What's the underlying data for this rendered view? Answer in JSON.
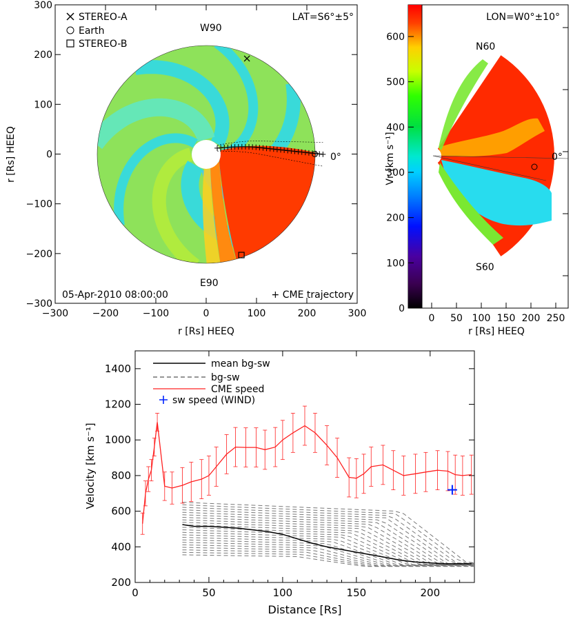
{
  "panel_a": {
    "legend": [
      {
        "symbol": "x-mark",
        "label": "STEREO-A"
      },
      {
        "symbol": "circle",
        "label": "Earth"
      },
      {
        "symbol": "square",
        "label": "STEREO-B"
      }
    ],
    "lat_label": "LAT=S6°±5°",
    "w90_label": "W90",
    "e90_label": "E90",
    "zero_label": "0°",
    "date_label": "05-Apr-2010 08:00:00",
    "trajectory_label": "+ CME trajectory",
    "xlabel": "r [Rs] HEEQ",
    "ylabel": "r [Rs] HEEQ",
    "xticks": [
      "−300",
      "−200",
      "−100",
      "0",
      "100",
      "200",
      "300"
    ],
    "yticks": [
      "300",
      "200",
      "100",
      "0",
      "−100",
      "−200",
      "−300"
    ],
    "xlim": [
      -300,
      300
    ],
    "ylim": [
      -300,
      300
    ],
    "domain_radius_rs": 215,
    "inner_radius_rs": 21.5,
    "stereo_a": {
      "x": 81,
      "y": 192
    },
    "earth": {
      "x": 216,
      "y": 0
    },
    "stereo_b": {
      "x": 70,
      "y": -203
    }
  },
  "panel_b": {
    "lon_label": "LON=W0°±10°",
    "n60_label": "N60",
    "s60_label": "S60",
    "zero_label": "0°",
    "xlabel": "r [Rs] HEEQ",
    "xticks": [
      "0",
      "50",
      "100",
      "150",
      "200",
      "250"
    ],
    "xlim": [
      0,
      280
    ],
    "colorbar_label": "Vr [km s⁻¹]",
    "colorbar_ticks": [
      "0",
      "100",
      "200",
      "300",
      "400",
      "500",
      "600"
    ],
    "colorbar_range": [
      0,
      670
    ],
    "colors": {
      "fast": "#ff2a00",
      "slow": "#28dcee",
      "mid": "#7ae832"
    }
  },
  "chart_data": {
    "type": "line",
    "xlabel": "Distance [Rs]",
    "ylabel": "Velocity [km s⁻¹]",
    "xlim": [
      0,
      230
    ],
    "ylim": [
      200,
      1500
    ],
    "xticks": [
      "0",
      "50",
      "100",
      "150",
      "200"
    ],
    "yticks": [
      "200",
      "400",
      "600",
      "800",
      "1000",
      "1200",
      "1400"
    ],
    "legend": [
      "mean bg-sw",
      "bg-sw",
      "CME speed",
      "sw speed (WIND)"
    ],
    "cme_speed": {
      "name": "CME speed",
      "color": "#ff2020",
      "x": [
        5,
        7,
        9,
        11,
        13,
        15,
        20,
        25,
        32,
        38,
        45,
        50,
        55,
        62,
        68,
        75,
        82,
        88,
        95,
        100,
        107,
        115,
        122,
        130,
        137,
        145,
        150,
        155,
        160,
        168,
        175,
        182,
        190,
        197,
        205,
        212,
        217,
        222,
        228
      ],
      "y": [
        530,
        700,
        780,
        830,
        960,
        1100,
        740,
        730,
        745,
        765,
        780,
        800,
        850,
        920,
        960,
        958,
        958,
        945,
        960,
        1000,
        1040,
        1080,
        1040,
        970,
        900,
        790,
        785,
        810,
        850,
        860,
        830,
        800,
        810,
        820,
        830,
        825,
        805,
        800,
        805
      ],
      "err": [
        60,
        70,
        70,
        60,
        50,
        50,
        80,
        90,
        100,
        110,
        110,
        110,
        110,
        110,
        110,
        110,
        110,
        110,
        110,
        110,
        110,
        110,
        110,
        110,
        110,
        110,
        110,
        110,
        110,
        110,
        110,
        110,
        110,
        110,
        110,
        110,
        110,
        110,
        110
      ]
    },
    "mean_bg_sw": {
      "name": "mean bg-sw",
      "x": [
        32,
        40,
        50,
        60,
        70,
        80,
        90,
        100,
        110,
        120,
        130,
        140,
        150,
        160,
        170,
        180,
        190,
        200,
        210,
        220,
        228
      ],
      "y": [
        525,
        515,
        515,
        510,
        505,
        495,
        485,
        470,
        445,
        420,
        400,
        385,
        370,
        355,
        340,
        325,
        315,
        310,
        305,
        305,
        305
      ]
    },
    "bg_sw_range": {
      "name": "bg-sw",
      "x": [
        32,
        230
      ],
      "top": [
        650,
        310
      ],
      "bottom": [
        355,
        290
      ],
      "count": 22
    },
    "wind": {
      "name": "sw speed (WIND)",
      "x": 215,
      "y": 720,
      "color": "#0022ff"
    }
  }
}
